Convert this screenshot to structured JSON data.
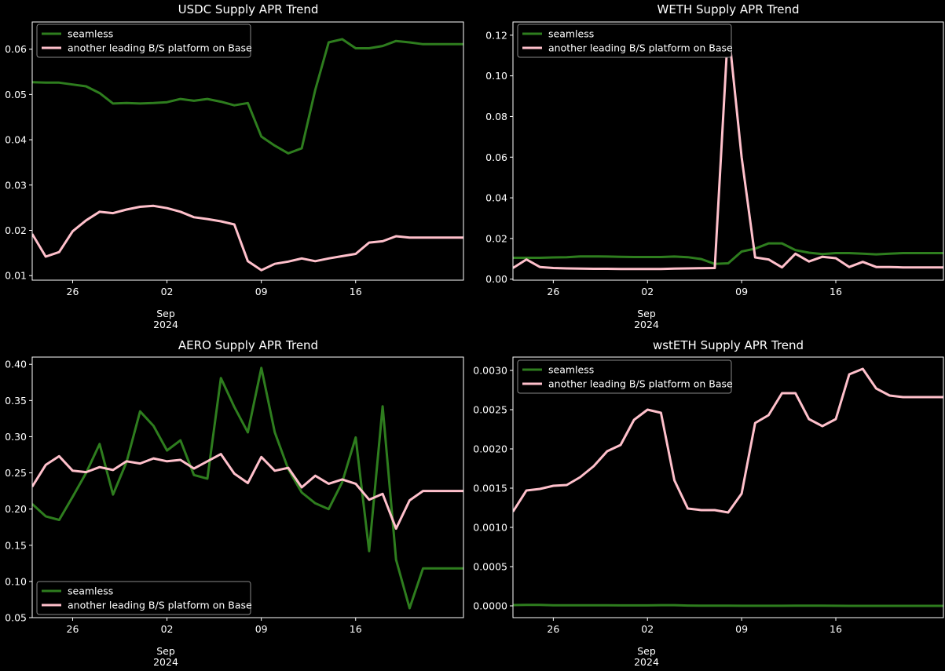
{
  "chart_data": [
    {
      "type": "line",
      "title": "USDC Supply APR Trend",
      "x": [
        23,
        24,
        25,
        26,
        27,
        28,
        29,
        30,
        31,
        32,
        33,
        34,
        35,
        36,
        37,
        38,
        39,
        40,
        41,
        42,
        43,
        44,
        45,
        46,
        47,
        48,
        49,
        50,
        51,
        52,
        53,
        54,
        55
      ],
      "xlim": [
        23,
        55
      ],
      "xticks": [
        {
          "x": 26,
          "label": "26"
        },
        {
          "x": 33,
          "label": "02"
        },
        {
          "x": 40,
          "label": "09"
        },
        {
          "x": 47,
          "label": "16"
        }
      ],
      "month_label": "Sep",
      "year_label": "2024",
      "ylim": [
        0.009,
        0.066
      ],
      "yticks": [
        {
          "v": 0.01,
          "label": "0.01"
        },
        {
          "v": 0.02,
          "label": "0.02"
        },
        {
          "v": 0.03,
          "label": "0.03"
        },
        {
          "v": 0.04,
          "label": "0.04"
        },
        {
          "v": 0.05,
          "label": "0.05"
        },
        {
          "v": 0.06,
          "label": "0.06"
        }
      ],
      "legend_position": "top-left",
      "series": [
        {
          "name": "seamless",
          "color": "#2e7d1e",
          "values": [
            0.0527,
            0.0526,
            0.0526,
            0.0522,
            0.0518,
            0.0503,
            0.048,
            0.0481,
            0.048,
            0.0481,
            0.0483,
            0.049,
            0.0486,
            0.049,
            0.0484,
            0.0476,
            0.0481,
            0.0407,
            0.0387,
            0.037,
            0.0381,
            0.051,
            0.0615,
            0.0622,
            0.0602,
            0.0602,
            0.0607,
            0.0618,
            0.0615,
            0.0611,
            0.0611,
            0.0611,
            0.0611
          ]
        },
        {
          "name": "another leading B/S platform on Base",
          "color": "#ffc0cb",
          "values": [
            0.0192,
            0.0142,
            0.0152,
            0.0198,
            0.0222,
            0.0241,
            0.0238,
            0.0246,
            0.0252,
            0.0254,
            0.0249,
            0.0241,
            0.0229,
            0.0225,
            0.022,
            0.0213,
            0.0132,
            0.0112,
            0.0126,
            0.0131,
            0.0138,
            0.0132,
            0.0138,
            0.0143,
            0.0148,
            0.0173,
            0.0176,
            0.0187,
            0.0184,
            0.0184,
            0.0184,
            0.0184,
            0.0184
          ]
        }
      ]
    },
    {
      "type": "line",
      "title": "WETH Supply APR Trend",
      "x": [
        23,
        24,
        25,
        26,
        27,
        28,
        29,
        30,
        31,
        32,
        33,
        34,
        35,
        36,
        37,
        38,
        39,
        40,
        41,
        42,
        43,
        44,
        45,
        46,
        47,
        48,
        49,
        50,
        51,
        52,
        53,
        54,
        55
      ],
      "xlim": [
        23,
        55
      ],
      "xticks": [
        {
          "x": 26,
          "label": "26"
        },
        {
          "x": 33,
          "label": "02"
        },
        {
          "x": 40,
          "label": "09"
        },
        {
          "x": 47,
          "label": "16"
        }
      ],
      "month_label": "Sep",
      "year_label": "2024",
      "ylim": [
        -0.0005,
        0.1265
      ],
      "yticks": [
        {
          "v": 0.0,
          "label": "0.00"
        },
        {
          "v": 0.02,
          "label": "0.02"
        },
        {
          "v": 0.04,
          "label": "0.04"
        },
        {
          "v": 0.06,
          "label": "0.06"
        },
        {
          "v": 0.08,
          "label": "0.08"
        },
        {
          "v": 0.1,
          "label": "0.10"
        },
        {
          "v": 0.12,
          "label": "0.12"
        }
      ],
      "legend_position": "top-left",
      "series": [
        {
          "name": "seamless",
          "color": "#2e7d1e",
          "values": [
            0.0105,
            0.0105,
            0.0105,
            0.0107,
            0.0108,
            0.0112,
            0.0112,
            0.0111,
            0.011,
            0.0109,
            0.0109,
            0.0109,
            0.0111,
            0.0108,
            0.0099,
            0.0075,
            0.0078,
            0.0136,
            0.015,
            0.0176,
            0.0176,
            0.0143,
            0.013,
            0.0123,
            0.0128,
            0.0128,
            0.0125,
            0.0122,
            0.0125,
            0.0128,
            0.0128,
            0.0128,
            0.0128
          ]
        },
        {
          "name": "another leading B/S platform on Base",
          "color": "#ffc0cb",
          "values": [
            0.0055,
            0.0097,
            0.006,
            0.0055,
            0.0053,
            0.0052,
            0.0051,
            0.0051,
            0.005,
            0.005,
            0.005,
            0.005,
            0.0052,
            0.0053,
            0.0054,
            0.0055,
            0.124,
            0.06,
            0.0107,
            0.0097,
            0.0058,
            0.0125,
            0.0087,
            0.011,
            0.0103,
            0.006,
            0.0085,
            0.006,
            0.006,
            0.0058,
            0.0058,
            0.0058,
            0.0058
          ]
        }
      ]
    },
    {
      "type": "line",
      "title": "AERO Supply APR Trend",
      "x": [
        23,
        24,
        25,
        26,
        27,
        28,
        29,
        30,
        31,
        32,
        33,
        34,
        35,
        36,
        37,
        38,
        39,
        40,
        41,
        42,
        43,
        44,
        45,
        46,
        47,
        48,
        49,
        50,
        51,
        52,
        53,
        54,
        55
      ],
      "xlim": [
        23,
        55
      ],
      "xticks": [
        {
          "x": 26,
          "label": "26"
        },
        {
          "x": 33,
          "label": "02"
        },
        {
          "x": 40,
          "label": "09"
        },
        {
          "x": 47,
          "label": "16"
        }
      ],
      "month_label": "Sep",
      "year_label": "2024",
      "ylim": [
        0.05,
        0.41
      ],
      "yticks": [
        {
          "v": 0.05,
          "label": "0.05"
        },
        {
          "v": 0.1,
          "label": "0.10"
        },
        {
          "v": 0.15,
          "label": "0.15"
        },
        {
          "v": 0.2,
          "label": "0.20"
        },
        {
          "v": 0.25,
          "label": "0.25"
        },
        {
          "v": 0.3,
          "label": "0.30"
        },
        {
          "v": 0.35,
          "label": "0.35"
        },
        {
          "v": 0.4,
          "label": "0.40"
        }
      ],
      "legend_position": "bottom-left",
      "series": [
        {
          "name": "seamless",
          "color": "#2e7d1e",
          "values": [
            0.207,
            0.19,
            0.185,
            0.217,
            0.25,
            0.29,
            0.22,
            0.265,
            0.335,
            0.315,
            0.281,
            0.295,
            0.247,
            0.242,
            0.381,
            0.341,
            0.306,
            0.395,
            0.306,
            0.255,
            0.223,
            0.208,
            0.2,
            0.237,
            0.299,
            0.142,
            0.342,
            0.13,
            0.063,
            0.118,
            0.118,
            0.118,
            0.118
          ]
        },
        {
          "name": "another leading B/S platform on Base",
          "color": "#ffc0cb",
          "values": [
            0.231,
            0.261,
            0.273,
            0.253,
            0.251,
            0.258,
            0.254,
            0.266,
            0.263,
            0.27,
            0.266,
            0.268,
            0.256,
            0.266,
            0.276,
            0.249,
            0.236,
            0.272,
            0.253,
            0.257,
            0.23,
            0.246,
            0.235,
            0.241,
            0.235,
            0.213,
            0.221,
            0.173,
            0.212,
            0.225,
            0.225,
            0.225,
            0.225
          ]
        }
      ]
    },
    {
      "type": "line",
      "title": "wstETH Supply APR Trend",
      "x": [
        23,
        24,
        25,
        26,
        27,
        28,
        29,
        30,
        31,
        32,
        33,
        34,
        35,
        36,
        37,
        38,
        39,
        40,
        41,
        42,
        43,
        44,
        45,
        46,
        47,
        48,
        49,
        50,
        51,
        52,
        53,
        54,
        55
      ],
      "xlim": [
        23,
        55
      ],
      "xticks": [
        {
          "x": 26,
          "label": "26"
        },
        {
          "x": 33,
          "label": "02"
        },
        {
          "x": 40,
          "label": "09"
        },
        {
          "x": 47,
          "label": "16"
        }
      ],
      "month_label": "Sep",
      "year_label": "2024",
      "ylim": [
        -0.00015,
        0.00317
      ],
      "yticks": [
        {
          "v": 0.0,
          "label": "0.0000"
        },
        {
          "v": 0.0005,
          "label": "0.0005"
        },
        {
          "v": 0.001,
          "label": "0.0010"
        },
        {
          "v": 0.0015,
          "label": "0.0015"
        },
        {
          "v": 0.002,
          "label": "0.0020"
        },
        {
          "v": 0.0025,
          "label": "0.0025"
        },
        {
          "v": 0.003,
          "label": "0.0030"
        }
      ],
      "legend_position": "top-left",
      "series": [
        {
          "name": "seamless",
          "color": "#2e7d1e",
          "values": [
            1e-05,
            1.2e-05,
            1.2e-05,
            8e-06,
            8e-06,
            7e-06,
            7e-06,
            7e-06,
            6e-06,
            6e-06,
            6e-06,
            9e-06,
            9e-06,
            4e-06,
            2e-06,
            2e-06,
            2e-06,
            1e-06,
            1e-06,
            1e-06,
            1e-06,
            2e-06,
            2e-06,
            2e-06,
            1e-06,
            0.0,
            0.0,
            0.0,
            0.0,
            0.0,
            0.0,
            0.0,
            0.0
          ]
        },
        {
          "name": "another leading B/S platform on Base",
          "color": "#ffc0cb",
          "values": [
            0.0012,
            0.00147,
            0.00149,
            0.00153,
            0.00154,
            0.00164,
            0.00178,
            0.00197,
            0.00205,
            0.00237,
            0.0025,
            0.00246,
            0.0016,
            0.00124,
            0.00122,
            0.00122,
            0.00119,
            0.00143,
            0.00233,
            0.00243,
            0.00271,
            0.00271,
            0.00238,
            0.00229,
            0.00238,
            0.00295,
            0.00302,
            0.00277,
            0.00268,
            0.00266,
            0.00266,
            0.00266,
            0.00266
          ]
        }
      ]
    }
  ]
}
